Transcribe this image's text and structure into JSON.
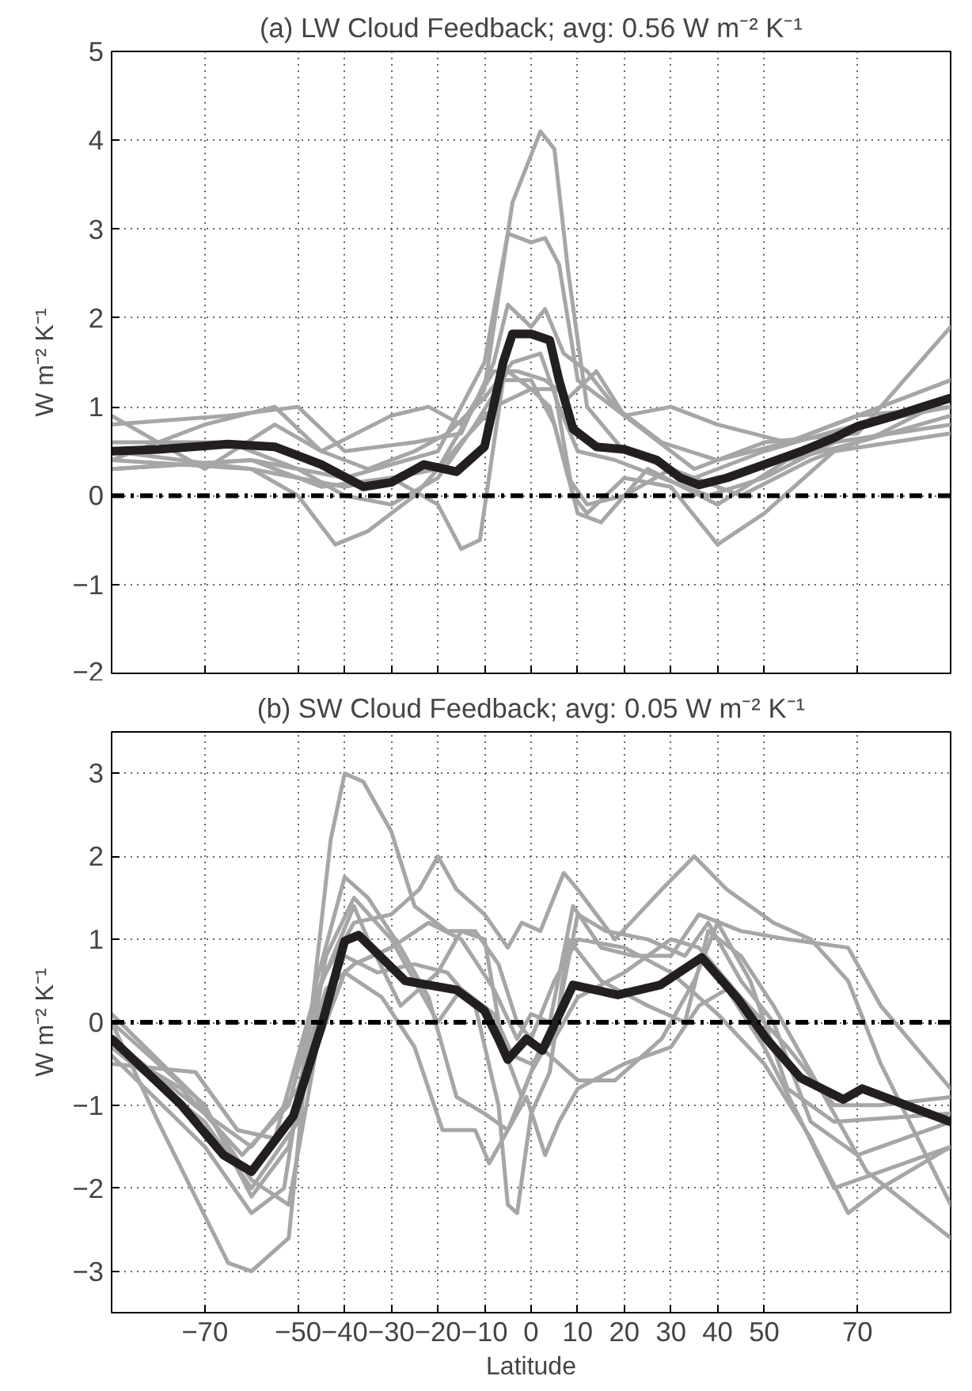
{
  "chart_data": [
    {
      "type": "line",
      "title": "(a) LW Cloud Feedback; avg: 0.56 W m⁻² K⁻¹",
      "ylabel": "W m⁻² K⁻¹",
      "xlim": [
        -90,
        90
      ],
      "xticks": [
        -70,
        -50,
        -40,
        -30,
        -20,
        -10,
        0,
        10,
        20,
        30,
        40,
        50,
        70
      ],
      "ylim": [
        -2,
        5
      ],
      "yticks": [
        -2,
        -1,
        0,
        1,
        2,
        3,
        4,
        5
      ],
      "grid": true,
      "tick_labels": "y",
      "line_style": "solid",
      "marker": "none",
      "ref_lines": [
        {
          "axis": "y",
          "value": 0,
          "color": "#000000",
          "line_style": "dashed"
        }
      ],
      "series": [
        {
          "color": "#a6a6a6",
          "x": [
            -90,
            -60,
            -40,
            -20,
            -10,
            -4,
            2,
            5,
            8,
            12,
            20,
            35,
            50,
            70,
            90
          ],
          "values": [
            0.4,
            0.3,
            0.1,
            0.3,
            1.2,
            3.3,
            4.1,
            3.9,
            2.5,
            1.0,
            0.5,
            0.2,
            0.5,
            0.8,
            1.0
          ]
        },
        {
          "color": "#a6a6a6",
          "x": [
            -90,
            -60,
            -40,
            -20,
            -10,
            -5,
            0,
            3,
            6,
            10,
            20,
            35,
            50,
            70,
            90
          ],
          "values": [
            0.3,
            0.4,
            0.2,
            0.5,
            1.5,
            2.95,
            2.85,
            2.9,
            2.6,
            1.3,
            0.9,
            0.3,
            0.6,
            0.7,
            1.9
          ]
        },
        {
          "color": "#a6a6a6",
          "x": [
            -90,
            -65,
            -50,
            -40,
            -25,
            -15,
            -8,
            -5,
            0,
            3,
            7,
            12,
            18,
            28,
            40,
            55,
            70,
            90
          ],
          "values": [
            0.8,
            0.9,
            1.0,
            0.5,
            0.6,
            0.7,
            1.5,
            2.15,
            1.9,
            2.1,
            1.6,
            1.4,
            1.0,
            0.6,
            0.4,
            0.6,
            0.9,
            1.0
          ]
        },
        {
          "color": "#a6a6a6",
          "x": [
            -90,
            -60,
            -45,
            -30,
            -20,
            -15,
            -11,
            -6,
            0,
            5,
            10,
            15,
            25,
            40,
            55,
            70,
            90
          ],
          "values": [
            0.3,
            0.4,
            0.1,
            0.2,
            -0.1,
            -0.6,
            -0.5,
            1.3,
            1.3,
            0.8,
            -0.2,
            -0.3,
            0.3,
            -0.1,
            0.4,
            0.6,
            0.9
          ]
        },
        {
          "color": "#a6a6a6",
          "x": [
            -90,
            -60,
            -50,
            -42,
            -35,
            -25,
            -15,
            -8,
            0,
            5,
            9,
            12,
            20,
            30,
            40,
            50,
            65,
            90
          ],
          "values": [
            0.5,
            0.3,
            0.0,
            -0.55,
            -0.4,
            0.0,
            0.6,
            1.0,
            1.2,
            1.2,
            0.0,
            -0.2,
            0.2,
            0.1,
            -0.55,
            -0.2,
            0.5,
            0.7
          ]
        },
        {
          "color": "#a6a6a6",
          "x": [
            -90,
            -70,
            -55,
            -45,
            -30,
            -22,
            -15,
            -8,
            -3,
            3,
            8,
            14,
            20,
            30,
            40,
            55,
            70,
            90
          ],
          "values": [
            0.9,
            0.3,
            0.8,
            0.5,
            0.9,
            1.0,
            0.8,
            1.4,
            1.4,
            1.3,
            1.1,
            1.4,
            0.9,
            1.0,
            0.8,
            0.6,
            0.9,
            1.3
          ]
        },
        {
          "color": "#a6a6a6",
          "x": [
            -90,
            -65,
            -50,
            -40,
            -30,
            -20,
            -12,
            -5,
            0,
            4,
            8,
            12,
            20,
            30,
            45,
            60,
            75,
            90
          ],
          "values": [
            0.6,
            0.6,
            0.3,
            0.0,
            -0.1,
            0.2,
            0.8,
            1.4,
            1.2,
            1.0,
            0.2,
            -0.1,
            0.0,
            0.3,
            0.0,
            0.4,
            0.7,
            1.1
          ]
        },
        {
          "color": "#a6a6a6",
          "x": [
            -90,
            -70,
            -55,
            -45,
            -35,
            -25,
            -18,
            -10,
            -4,
            2,
            6,
            10,
            18,
            28,
            38,
            50,
            65,
            90
          ],
          "values": [
            0.4,
            0.8,
            1.0,
            0.5,
            0.3,
            0.5,
            0.7,
            1.1,
            1.5,
            1.6,
            1.0,
            0.5,
            0.4,
            0.2,
            0.0,
            0.2,
            0.6,
            0.8
          ]
        },
        {
          "color": "#231f20",
          "x": [
            -90,
            -80,
            -65,
            -55,
            -45,
            -36,
            -30,
            -23,
            -16,
            -10,
            -6,
            -4,
            0,
            4,
            6,
            9,
            14,
            20,
            27,
            32,
            36,
            42,
            50,
            58,
            65,
            70,
            78,
            90
          ],
          "values": [
            0.5,
            0.52,
            0.58,
            0.55,
            0.35,
            0.1,
            0.15,
            0.35,
            0.27,
            0.55,
            1.5,
            1.82,
            1.82,
            1.75,
            1.3,
            0.75,
            0.55,
            0.52,
            0.4,
            0.2,
            0.12,
            0.2,
            0.35,
            0.5,
            0.65,
            0.78,
            0.9,
            1.1
          ]
        }
      ]
    },
    {
      "type": "line",
      "title": "(b) SW Cloud Feedback; avg: 0.05 W m⁻² K⁻¹",
      "ylabel": "W m⁻² K⁻¹",
      "xlabel": "Latitude",
      "xlim": [
        -90,
        90
      ],
      "xticks": [
        -70,
        -50,
        -40,
        -30,
        -20,
        -10,
        0,
        10,
        20,
        30,
        40,
        50,
        70
      ],
      "ylim": [
        -3.5,
        3.5
      ],
      "yticks": [
        -3,
        -2,
        -1,
        0,
        1,
        2,
        3
      ],
      "grid": true,
      "line_style": "solid",
      "marker": "none",
      "ref_lines": [
        {
          "axis": "y",
          "value": 0,
          "color": "#000000",
          "line_style": "dashed"
        }
      ],
      "series": [
        {
          "color": "#a6a6a6",
          "x": [
            -90,
            -80,
            -65,
            -60,
            -52,
            -47,
            -43,
            -40,
            -36,
            -30,
            -25,
            -18,
            -12,
            -7,
            -3,
            0,
            5,
            10,
            20,
            30,
            40,
            50,
            60,
            68,
            75,
            90
          ],
          "values": [
            0.0,
            -1.2,
            -2.9,
            -3.0,
            -2.6,
            0.2,
            2.2,
            3.0,
            2.9,
            2.3,
            1.4,
            1.1,
            1.1,
            0.7,
            0.0,
            -0.2,
            0.5,
            1.0,
            0.9,
            0.6,
            0.1,
            -0.5,
            -1.4,
            -2.3,
            -2.0,
            -1.5
          ]
        },
        {
          "color": "#a6a6a6",
          "x": [
            -90,
            -75,
            -62,
            -52,
            -45,
            -38,
            -30,
            -24,
            -20,
            -16,
            -10,
            -5,
            -2,
            2,
            7,
            10,
            18,
            28,
            35,
            42,
            52,
            60,
            68,
            75,
            90
          ],
          "values": [
            -0.3,
            -0.8,
            -1.6,
            -1.0,
            0.5,
            1.2,
            1.3,
            1.6,
            2.0,
            1.6,
            1.3,
            0.9,
            1.2,
            1.1,
            1.8,
            1.6,
            1.0,
            1.6,
            2.0,
            1.6,
            1.2,
            1.0,
            0.5,
            -0.5,
            -2.2
          ]
        },
        {
          "color": "#a6a6a6",
          "x": [
            -90,
            -70,
            -60,
            -53,
            -46,
            -40,
            -35,
            -28,
            -22,
            -16,
            -10,
            -5,
            0,
            5,
            10,
            16,
            25,
            33,
            38,
            45,
            52,
            60,
            70,
            90
          ],
          "values": [
            -0.4,
            -1.5,
            -2.3,
            -2.0,
            0.5,
            1.75,
            1.5,
            0.9,
            0.3,
            -0.9,
            -1.1,
            -1.3,
            -0.6,
            -0.1,
            1.3,
            1.1,
            1.0,
            0.8,
            1.2,
            0.5,
            0.0,
            -1.2,
            -1.6,
            -1.2
          ]
        },
        {
          "color": "#a6a6a6",
          "x": [
            -90,
            -70,
            -60,
            -52,
            -46,
            -40,
            -33,
            -25,
            -18,
            -12,
            -7,
            -5,
            -3,
            0,
            4,
            8,
            15,
            25,
            33,
            38,
            45,
            52,
            62,
            72,
            90
          ],
          "values": [
            0.0,
            -1.0,
            -2.1,
            -1.5,
            0.0,
            0.8,
            0.6,
            0.7,
            0.6,
            0.2,
            -1.0,
            -2.2,
            -2.3,
            -1.1,
            -0.6,
            1.0,
            0.5,
            0.2,
            0.0,
            1.1,
            0.8,
            0.2,
            -0.8,
            -1.8,
            -2.6
          ]
        },
        {
          "color": "#a6a6a6",
          "x": [
            -90,
            -72,
            -63,
            -55,
            -47,
            -38,
            -35,
            -28,
            -20,
            -15,
            -10,
            -6,
            -2,
            2,
            6,
            10,
            18,
            28,
            35,
            40,
            47,
            55,
            65,
            90
          ],
          "values": [
            -0.5,
            -0.6,
            -1.3,
            -1.4,
            0.2,
            1.4,
            1.0,
            0.2,
            0.6,
            1.1,
            1.0,
            -0.3,
            -0.9,
            -0.3,
            -0.5,
            -0.7,
            -0.7,
            -0.2,
            0.5,
            1.2,
            0.5,
            -0.8,
            -1.2,
            -1.1
          ]
        },
        {
          "color": "#a6a6a6",
          "x": [
            -90,
            -70,
            -60,
            -50,
            -44,
            -38,
            -30,
            -22,
            -15,
            -8,
            -3,
            0,
            4,
            9,
            15,
            22,
            30,
            36,
            45,
            55,
            68,
            75,
            90
          ],
          "values": [
            -0.2,
            -1.1,
            -1.5,
            -0.8,
            0.4,
            0.7,
            0.9,
            1.2,
            1.0,
            0.4,
            -0.2,
            0.1,
            0.0,
            1.4,
            0.9,
            0.8,
            0.8,
            1.3,
            1.1,
            1.0,
            0.9,
            0.2,
            -0.8
          ]
        },
        {
          "color": "#a6a6a6",
          "x": [
            -90,
            -72,
            -60,
            -52,
            -46,
            -40,
            -32,
            -25,
            -19,
            -12,
            -9,
            -5,
            -1,
            3,
            6,
            10,
            20,
            30,
            36,
            42,
            50,
            58,
            65,
            90
          ],
          "values": [
            0.1,
            -0.9,
            -1.9,
            -2.2,
            -0.3,
            0.6,
            0.3,
            -0.3,
            -1.3,
            -1.3,
            -1.7,
            -1.3,
            -0.9,
            -1.6,
            -1.2,
            -0.8,
            -0.5,
            -0.3,
            0.2,
            0.4,
            -0.3,
            -1.2,
            -2.0,
            -1.5
          ]
        },
        {
          "color": "#a6a6a6",
          "x": [
            -90,
            -70,
            -60,
            -50,
            -44,
            -38,
            -30,
            -20,
            -15,
            -8,
            -4,
            0,
            5,
            10,
            20,
            30,
            36,
            45,
            55,
            65,
            75,
            90
          ],
          "values": [
            -0.3,
            -1.2,
            -2.0,
            -1.2,
            0.8,
            1.5,
            1.0,
            0.0,
            0.4,
            0.1,
            -0.4,
            -0.5,
            -0.2,
            0.3,
            0.6,
            1.0,
            0.9,
            0.3,
            -0.3,
            -1.0,
            -1.0,
            -0.9
          ]
        },
        {
          "color": "#231f20",
          "x": [
            -90,
            -75,
            -66,
            -60,
            -51,
            -45,
            -40,
            -37,
            -27,
            -16,
            -10,
            -7,
            -5,
            -1,
            2.4,
            9,
            18.6,
            27.7,
            36.6,
            44.4,
            50.5,
            57.8,
            67,
            71,
            90
          ],
          "values": [
            -0.2,
            -1.0,
            -1.6,
            -1.8,
            -1.13,
            -0.05,
            0.98,
            1.05,
            0.5,
            0.39,
            0.14,
            -0.2,
            -0.45,
            -0.2,
            -0.34,
            0.45,
            0.33,
            0.45,
            0.78,
            0.28,
            -0.2,
            -0.67,
            -0.93,
            -0.8,
            -1.2
          ]
        }
      ]
    }
  ]
}
